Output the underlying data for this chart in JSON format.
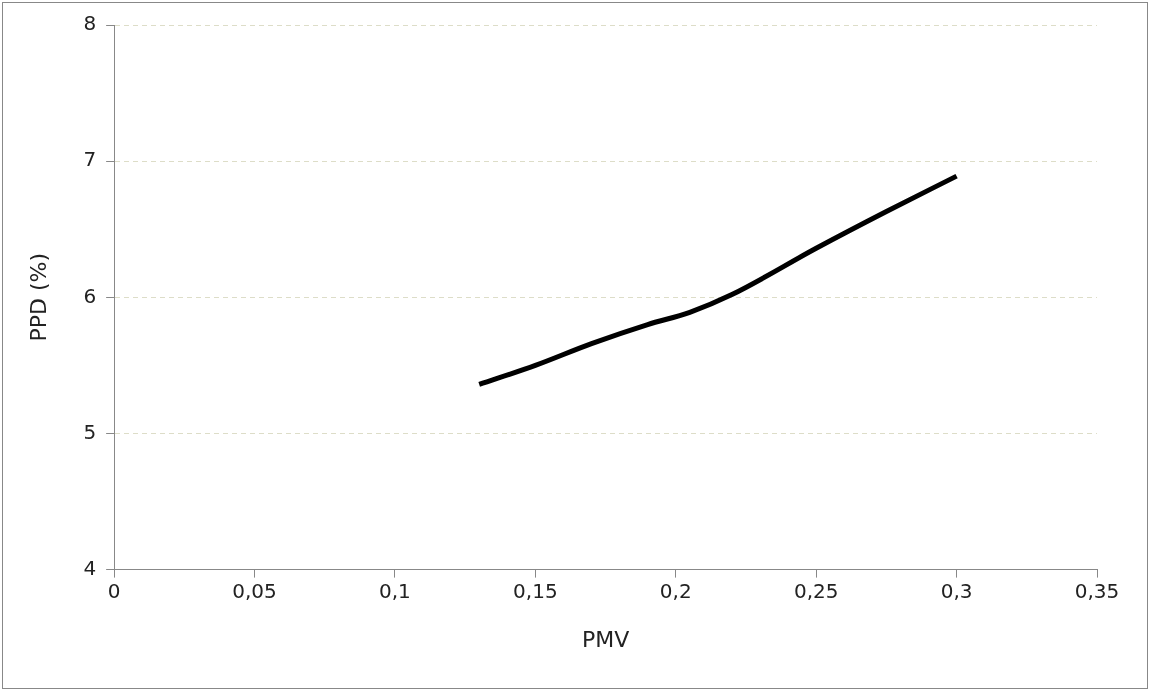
{
  "chart_data": {
    "type": "line",
    "xlabel": "PMV",
    "ylabel": "PPD (%)",
    "x": [
      0.13,
      0.15,
      0.17,
      0.19,
      0.205,
      0.22,
      0.25,
      0.275,
      0.3
    ],
    "series": [
      {
        "color": "#000000",
        "values": [
          5.36,
          5.5,
          5.66,
          5.8,
          5.89,
          6.02,
          6.36,
          6.63,
          6.89
        ]
      }
    ],
    "xlim": [
      0,
      0.35
    ],
    "xticks": [
      0,
      {
        "value": 0.05,
        "label": "0,05"
      },
      {
        "value": 0.1,
        "label": "0,1"
      },
      {
        "value": 0.15,
        "label": "0,15"
      },
      {
        "value": 0.2,
        "label": "0,2"
      },
      {
        "value": 0.25,
        "label": "0,25"
      },
      {
        "value": 0.3,
        "label": "0,3"
      },
      {
        "value": 0.35,
        "label": "0,35"
      }
    ],
    "ylim": [
      4,
      8
    ],
    "yticks": [
      4,
      5,
      6,
      7,
      8
    ],
    "grid": "y",
    "legend": false,
    "marker": "none",
    "line_style": "solid"
  }
}
